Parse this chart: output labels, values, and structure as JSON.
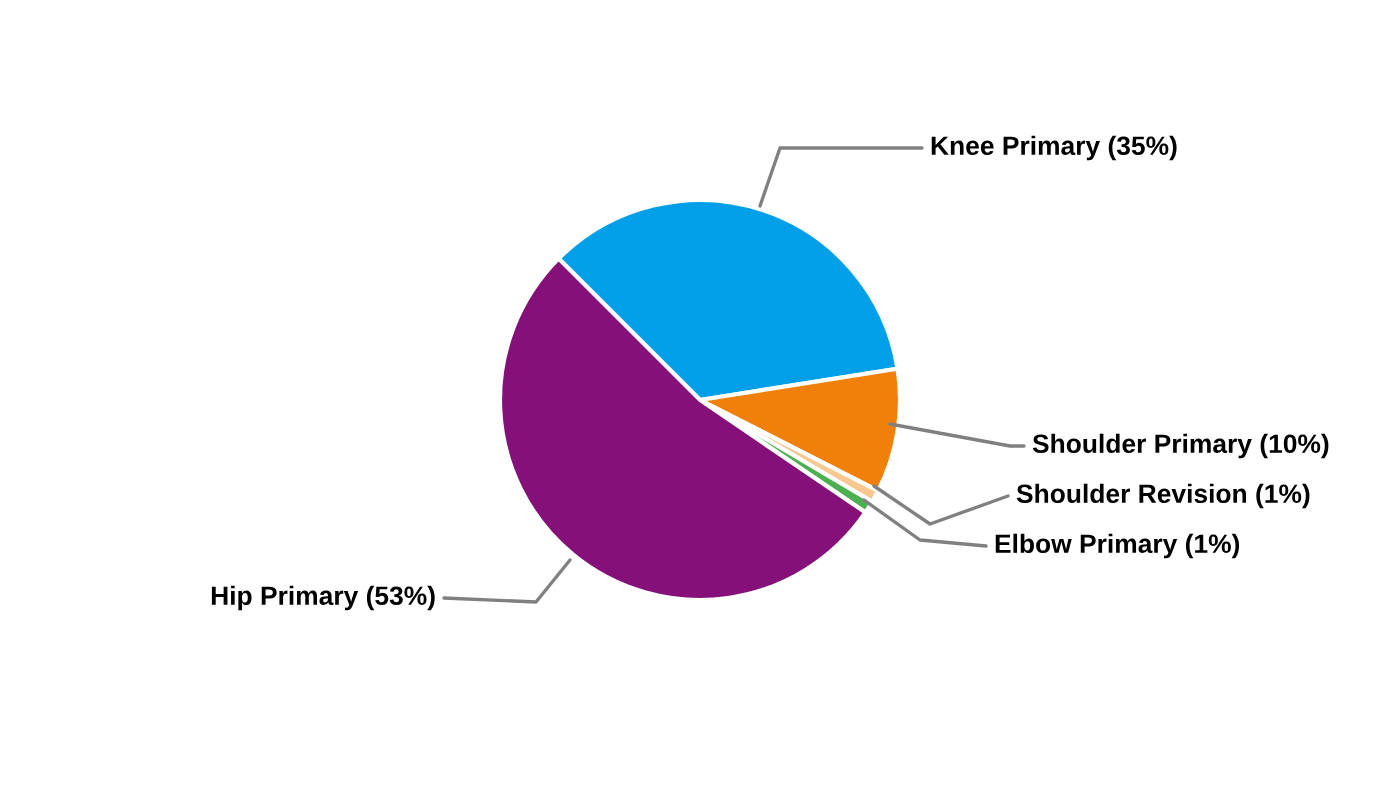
{
  "chart_data": {
    "type": "pie",
    "categories": [
      "Knee Primary (35%)",
      "Shoulder Primary (10%)",
      "Shoulder Revision (1%)",
      "Elbow Primary (1%)",
      "Hip Primary (53%)"
    ],
    "values": [
      35,
      10,
      1,
      1,
      53
    ],
    "colors": [
      "#009fe8",
      "#f0800a",
      "#f8c890",
      "#4caf50",
      "#85107a"
    ],
    "legend": false
  }
}
